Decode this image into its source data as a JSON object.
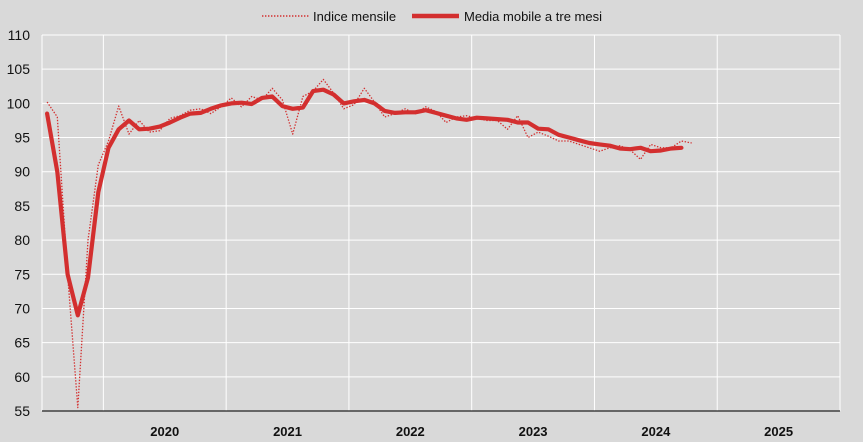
{
  "chart_data": {
    "type": "line",
    "title": "",
    "xlabel": "",
    "ylabel": "",
    "ylim": [
      55,
      110
    ],
    "yticks": [
      55,
      60,
      65,
      70,
      75,
      80,
      85,
      90,
      95,
      100,
      105,
      110
    ],
    "xticks": [
      "2020",
      "2021",
      "2022",
      "2023",
      "2024",
      "2025"
    ],
    "xlim": [
      "2019-07",
      "2025-12"
    ],
    "grid": true,
    "legend_position": "top-center",
    "colors": {
      "series": "#d32f2f",
      "background": "#d9d9d9",
      "grid": "#ffffff"
    },
    "series": [
      {
        "name": "Indice mensile",
        "style": "dotted",
        "x": [
          "2019-07",
          "2019-08",
          "2019-09",
          "2019-10",
          "2019-11",
          "2019-12",
          "2020-01",
          "2020-02",
          "2020-03",
          "2020-04",
          "2020-05",
          "2020-06",
          "2020-07",
          "2020-08",
          "2020-09",
          "2020-10",
          "2020-11",
          "2020-12",
          "2021-01",
          "2021-02",
          "2021-03",
          "2021-04",
          "2021-05",
          "2021-06",
          "2021-07",
          "2021-08",
          "2021-09",
          "2021-10",
          "2021-11",
          "2021-12",
          "2022-01",
          "2022-02",
          "2022-03",
          "2022-04",
          "2022-05",
          "2022-06",
          "2022-07",
          "2022-08",
          "2022-09",
          "2022-10",
          "2022-11",
          "2022-12",
          "2023-01",
          "2023-02",
          "2023-03",
          "2023-04",
          "2023-05",
          "2023-06",
          "2023-07",
          "2023-08",
          "2023-09",
          "2023-10",
          "2023-11",
          "2023-12",
          "2024-01",
          "2024-02",
          "2024-03",
          "2024-04",
          "2024-05",
          "2024-06",
          "2024-07",
          "2024-08",
          "2024-09",
          "2024-10"
        ],
        "values": [
          100.2,
          98.0,
          75.0,
          55.5,
          80.0,
          91.0,
          94.5,
          99.6,
          95.5,
          97.5,
          95.8,
          96.0,
          97.8,
          98.2,
          99.0,
          99.2,
          98.5,
          99.5,
          100.8,
          99.5,
          101.0,
          100.5,
          102.2,
          100.5,
          95.5,
          101.0,
          101.8,
          103.5,
          101.5,
          99.2,
          99.8,
          102.2,
          100.2,
          98.0,
          98.5,
          99.2,
          98.5,
          99.5,
          98.8,
          97.2,
          98.0,
          98.2,
          97.8,
          97.5,
          97.5,
          96.2,
          98.2,
          95.0,
          95.8,
          95.2,
          94.5,
          94.5,
          94.0,
          93.5,
          93.0,
          93.5,
          93.8,
          93.2,
          91.8,
          94.0,
          93.5,
          93.5,
          94.5,
          94.2
        ],
        "offsets": [
          0,
          1,
          2,
          3,
          4,
          5,
          6,
          7,
          8,
          9,
          10,
          11,
          12,
          13,
          14,
          15,
          16,
          17,
          18,
          19,
          20,
          21,
          22,
          23,
          24,
          25,
          26,
          27,
          28,
          29,
          30,
          31,
          32,
          33,
          34,
          35,
          36,
          37,
          38,
          39,
          40,
          41,
          42,
          43,
          44,
          45,
          46,
          47,
          48,
          49,
          50,
          51,
          52,
          53,
          54,
          55,
          56,
          57,
          58,
          59,
          60,
          61,
          62,
          63
        ]
      },
      {
        "name": "Media mobile a tre mesi",
        "style": "solid",
        "x": [
          "2019-07",
          "2019-08",
          "2019-09",
          "2019-10",
          "2019-11",
          "2019-12",
          "2020-01",
          "2020-02",
          "2020-03",
          "2020-04",
          "2020-05",
          "2020-06",
          "2020-07",
          "2020-08",
          "2020-09",
          "2020-10",
          "2020-11",
          "2020-12",
          "2021-01",
          "2021-02",
          "2021-03",
          "2021-04",
          "2021-05",
          "2021-06",
          "2021-07",
          "2021-08",
          "2021-09",
          "2021-10",
          "2021-11",
          "2021-12",
          "2022-01",
          "2022-02",
          "2022-03",
          "2022-04",
          "2022-05",
          "2022-06",
          "2022-07",
          "2022-08",
          "2022-09",
          "2022-10",
          "2022-11",
          "2022-12",
          "2023-01",
          "2023-02",
          "2023-03",
          "2023-04",
          "2023-05",
          "2023-06",
          "2023-07",
          "2023-08",
          "2023-09",
          "2023-10",
          "2023-11",
          "2023-12",
          "2024-01",
          "2024-02",
          "2024-03",
          "2024-04",
          "2024-05",
          "2024-06",
          "2024-07",
          "2024-08",
          "2024-09"
        ],
        "values": [
          98.5,
          90.0,
          75.0,
          69.0,
          74.5,
          87.0,
          93.5,
          96.2,
          97.5,
          96.2,
          96.3,
          96.6,
          97.2,
          97.9,
          98.5,
          98.6,
          99.2,
          99.7,
          100.0,
          100.1,
          99.9,
          100.8,
          101.0,
          99.6,
          99.2,
          99.4,
          101.8,
          102.0,
          101.3,
          100.0,
          100.3,
          100.5,
          100.0,
          98.9,
          98.6,
          98.7,
          98.7,
          99.0,
          98.6,
          98.2,
          97.8,
          97.6,
          97.9,
          97.8,
          97.7,
          97.6,
          97.2,
          97.2,
          96.3,
          96.2,
          95.4,
          95.0,
          94.6,
          94.2,
          94.0,
          93.8,
          93.4,
          93.3,
          93.5,
          93.0,
          93.1,
          93.4,
          93.5
        ]
      }
    ]
  }
}
